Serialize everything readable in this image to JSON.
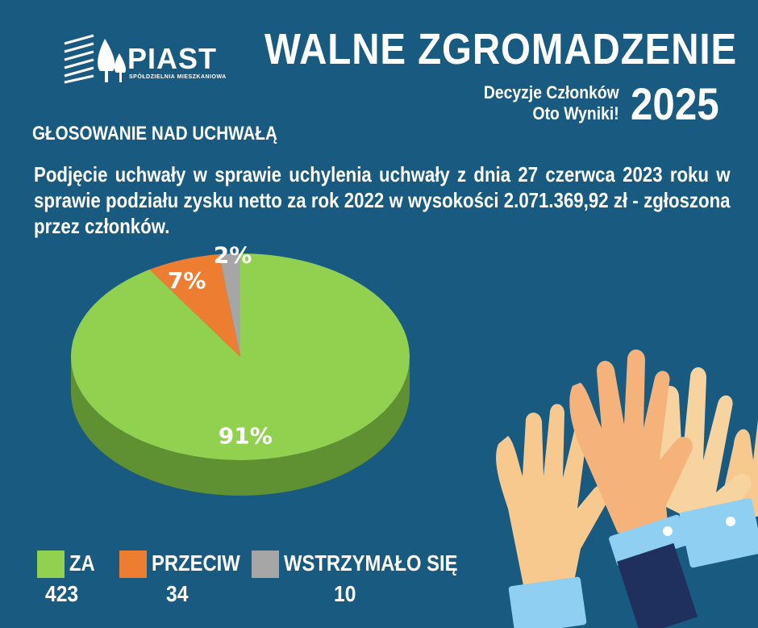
{
  "logo": {
    "name": "PIAST",
    "subtitle": "SPÓŁDZIELNIA MIESZKANIOWA"
  },
  "header": {
    "title": "WALNE ZGROMADZENIE",
    "subtitle_line1": "Decyzje Członków",
    "subtitle_line2": "Oto Wyniki!",
    "year": "2025"
  },
  "section_title": "GŁOSOWANIE NAD UCHWAŁĄ",
  "question": "Podjęcie uchwały w sprawie uchylenia uchwały z dnia 27 czerwca 2023 roku w sprawie podziału zysku netto za rok 2022 w wysokości 2.071.369,92 zł - zgłoszona przez członków.",
  "chart_data": {
    "type": "pie",
    "title": "",
    "slices": [
      {
        "label": "ZA",
        "count": "423",
        "value": 91,
        "pct_label": "91%",
        "color": "#92d050",
        "side": "#5f9133"
      },
      {
        "label": "PRZECIW",
        "count": "34",
        "value": 7,
        "pct_label": "7%",
        "color": "#ed7d31",
        "side": "#b55a1e"
      },
      {
        "label": "WSTRZYMAŁO SIĘ",
        "count": "10",
        "value": 2,
        "pct_label": "2%",
        "color": "#a6a6a6",
        "side": "#777777"
      }
    ]
  },
  "colors": {
    "background": "#185a80"
  },
  "decoration": {
    "hands": "raised-hands-illustration"
  }
}
